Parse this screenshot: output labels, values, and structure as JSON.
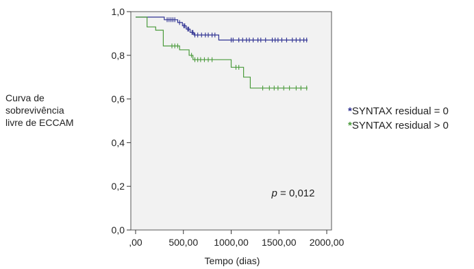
{
  "chart_data": {
    "type": "line",
    "subtype": "kaplan-meier",
    "title": "",
    "xlabel": "Tempo (dias)",
    "ylabel_lines": [
      "Curva de",
      "sobrevivência",
      "livre de ECCAM"
    ],
    "xlim": [
      -50,
      2050
    ],
    "ylim": [
      0.0,
      1.0
    ],
    "x_ticks": [
      0,
      500,
      1000,
      1500,
      2000
    ],
    "x_tick_labels": [
      ",00",
      "500,00",
      "1000,00",
      "1500,00",
      "2000,00"
    ],
    "y_ticks": [
      0.0,
      0.2,
      0.4,
      0.6,
      0.8,
      1.0
    ],
    "y_tick_labels": [
      "0,0",
      "0,2",
      "0,4",
      "0,6",
      "0,8",
      "1,0"
    ],
    "annotation": {
      "italic": "p",
      "text": " = 0,012"
    },
    "background": "#f2f2f2",
    "legend_position": "right",
    "series": [
      {
        "name": "SYNTAX residual = 0",
        "color": "#2e3192",
        "steps": [
          [
            0,
            0.975
          ],
          [
            300,
            0.975
          ],
          [
            300,
            0.963
          ],
          [
            440,
            0.963
          ],
          [
            440,
            0.95
          ],
          [
            490,
            0.95
          ],
          [
            490,
            0.935
          ],
          [
            530,
            0.935
          ],
          [
            530,
            0.92
          ],
          [
            570,
            0.92
          ],
          [
            570,
            0.905
          ],
          [
            610,
            0.905
          ],
          [
            610,
            0.893
          ],
          [
            870,
            0.893
          ],
          [
            870,
            0.87
          ],
          [
            1800,
            0.87
          ]
        ],
        "censored": [
          330,
          350,
          370,
          390,
          410,
          460,
          505,
          515,
          545,
          555,
          590,
          600,
          620,
          650,
          690,
          730,
          760,
          800,
          830,
          1000,
          1020,
          1080,
          1120,
          1160,
          1190,
          1230,
          1280,
          1310,
          1360,
          1430,
          1460,
          1490,
          1530,
          1580,
          1640,
          1680,
          1720,
          1760,
          1790
        ]
      },
      {
        "name": "SYNTAX residual > 0",
        "color": "#4a9a3b",
        "steps": [
          [
            0,
            0.975
          ],
          [
            120,
            0.975
          ],
          [
            120,
            0.93
          ],
          [
            210,
            0.93
          ],
          [
            210,
            0.915
          ],
          [
            290,
            0.915
          ],
          [
            290,
            0.843
          ],
          [
            460,
            0.843
          ],
          [
            460,
            0.825
          ],
          [
            560,
            0.825
          ],
          [
            560,
            0.8
          ],
          [
            600,
            0.8
          ],
          [
            600,
            0.78
          ],
          [
            1000,
            0.78
          ],
          [
            1000,
            0.745
          ],
          [
            1130,
            0.745
          ],
          [
            1130,
            0.7
          ],
          [
            1200,
            0.7
          ],
          [
            1200,
            0.65
          ],
          [
            1800,
            0.65
          ]
        ],
        "censored": [
          380,
          410,
          440,
          585,
          620,
          650,
          680,
          720,
          760,
          800,
          1050,
          1080,
          1330,
          1400,
          1450,
          1490,
          1550,
          1610,
          1680,
          1730,
          1790
        ]
      }
    ]
  }
}
